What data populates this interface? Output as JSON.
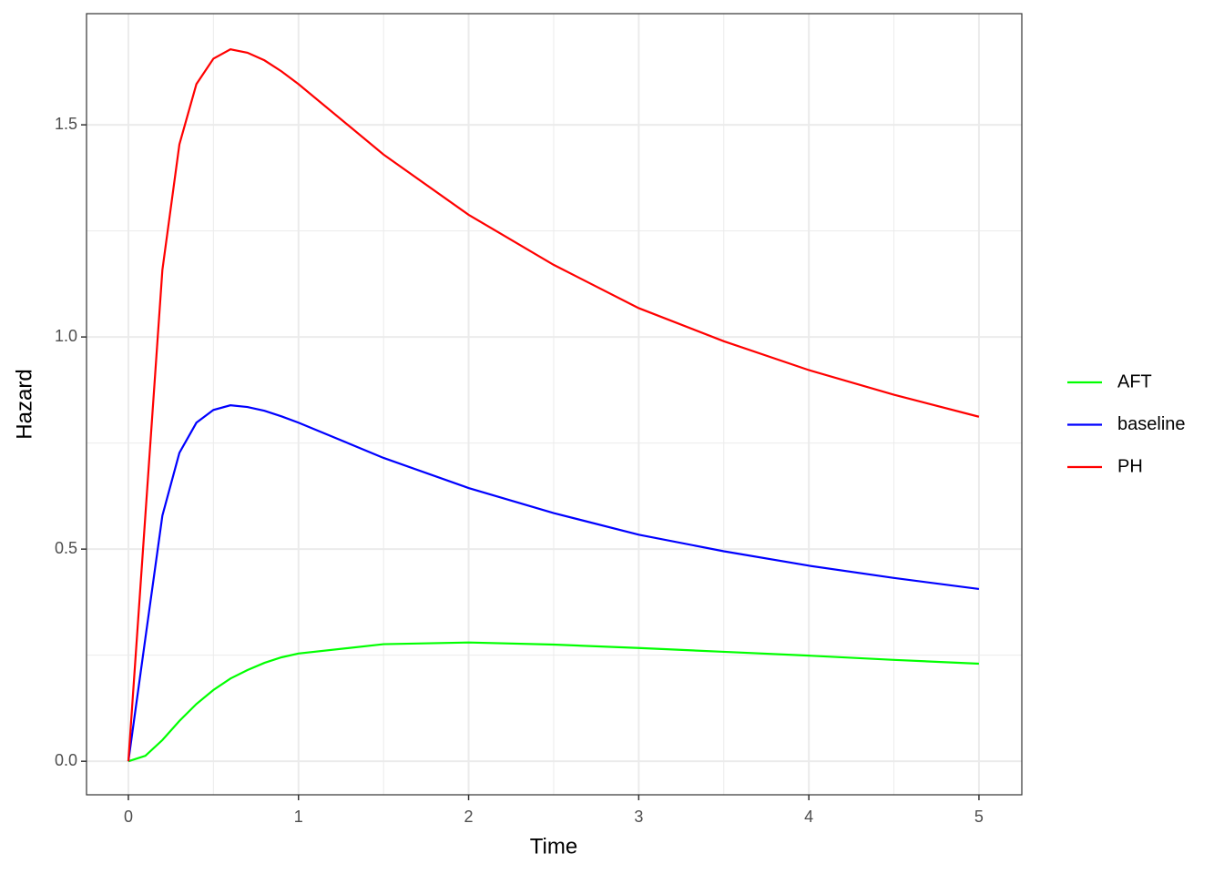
{
  "chart_data": {
    "type": "line",
    "x_label": "Time",
    "y_label": "Hazard",
    "x": [
      0,
      0.1,
      0.2,
      0.3,
      0.4,
      0.5,
      0.6,
      0.7,
      0.8,
      0.9,
      1,
      1.5,
      2,
      2.5,
      3,
      3.5,
      4,
      4.5,
      5
    ],
    "series": [
      {
        "name": "AFT",
        "color": "#00ff00",
        "values": [
          0,
          0.013,
          0.05,
          0.095,
          0.135,
          0.168,
          0.195,
          0.215,
          0.232,
          0.245,
          0.254,
          0.276,
          0.28,
          0.275,
          0.267,
          0.258,
          0.249,
          0.239,
          0.23
        ]
      },
      {
        "name": "baseline",
        "color": "#0000ff",
        "values": [
          0,
          0.29,
          0.579,
          0.727,
          0.798,
          0.828,
          0.839,
          0.835,
          0.826,
          0.813,
          0.798,
          0.715,
          0.644,
          0.585,
          0.534,
          0.495,
          0.461,
          0.432,
          0.406
        ]
      },
      {
        "name": "PH",
        "color": "#ff0000",
        "values": [
          0,
          0.58,
          1.158,
          1.454,
          1.596,
          1.656,
          1.678,
          1.67,
          1.652,
          1.626,
          1.596,
          1.43,
          1.288,
          1.17,
          1.068,
          0.99,
          0.922,
          0.864,
          0.812
        ]
      }
    ],
    "xlim": [
      -0.246,
      5.252
    ],
    "ylim": [
      -0.079,
      1.762
    ],
    "xticks": [
      0,
      1,
      2,
      3,
      4,
      5
    ],
    "yticks": [
      {
        "value": 0,
        "label": "0.0"
      },
      0.5,
      {
        "value": 1,
        "label": "1.0"
      },
      1.5
    ],
    "grid": true,
    "legend": "right"
  }
}
